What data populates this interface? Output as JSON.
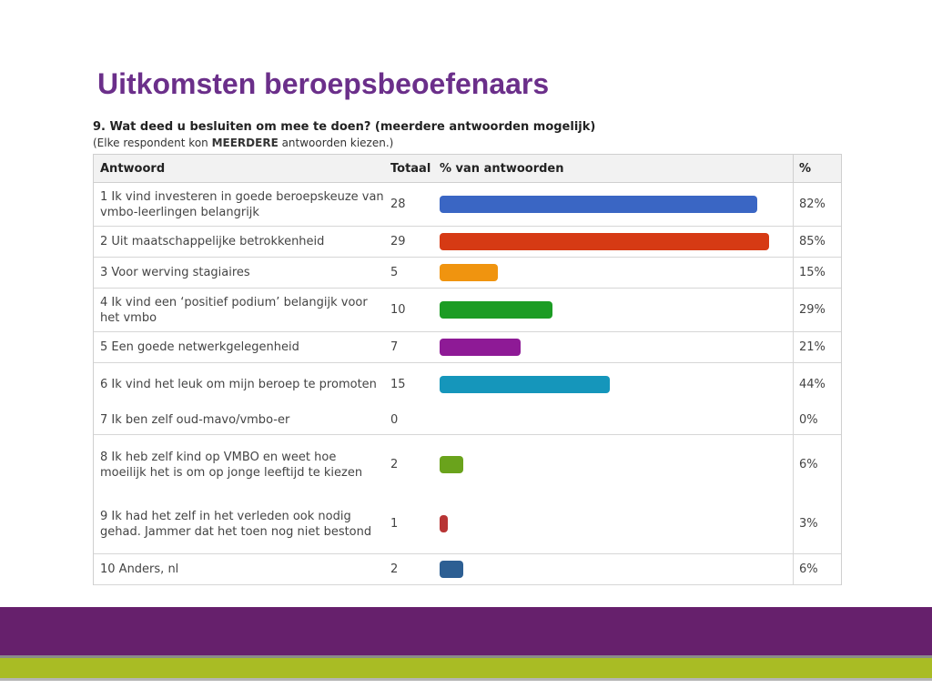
{
  "slide": {
    "title": "Uitkomsten beroepsbeoefenaars"
  },
  "survey": {
    "question": "9.  Wat deed u besluiten om mee te doen? (meerdere antwoorden mogelijk)",
    "instruction_prefix": "(Elke respondent kon ",
    "instruction_bold": "MEERDERE",
    "instruction_suffix": " antwoorden kiezen.)"
  },
  "table": {
    "headers": {
      "answer": "Antwoord",
      "total": "Totaal",
      "bar": "% van antwoorden",
      "pct": "%"
    }
  },
  "chart_data": {
    "type": "bar",
    "orientation": "horizontal",
    "xlim": [
      0,
      100
    ],
    "categories": [
      "1 Ik vind investeren in goede beroepskeuze van vmbo-leerlingen belangrijk",
      "2 Uit maatschappelijke betrokkenheid",
      "3 Voor werving stagiaires",
      "4 Ik vind een ‘positief podium’ belangijk voor het vmbo",
      "5 Een goede netwerkgelegenheid",
      "6 Ik vind het leuk om mijn beroep te promoten",
      "7 Ik ben zelf oud-mavo/vmbo-er",
      "8 Ik heb zelf kind op VMBO en weet hoe moeilijk het is om op jonge leeftijd te kiezen",
      "9 Ik had het zelf in het verleden ook nodig gehad. Jammer dat het toen nog niet bestond",
      "10 Anders, nl"
    ],
    "totals": [
      28,
      29,
      5,
      10,
      7,
      15,
      0,
      2,
      1,
      2
    ],
    "values": [
      82,
      85,
      15,
      29,
      21,
      44,
      0,
      6,
      3,
      6
    ],
    "value_labels": [
      "82%",
      "85%",
      "15%",
      "29%",
      "21%",
      "44%",
      "0%",
      "6%",
      "3%",
      "6%"
    ],
    "colors": [
      "#3a66c4",
      "#d63a14",
      "#f0940f",
      "#1c9c24",
      "#8e1a96",
      "#1596bb",
      "#cccccc",
      "#6aa31c",
      "#b83535",
      "#2d5f93"
    ]
  }
}
